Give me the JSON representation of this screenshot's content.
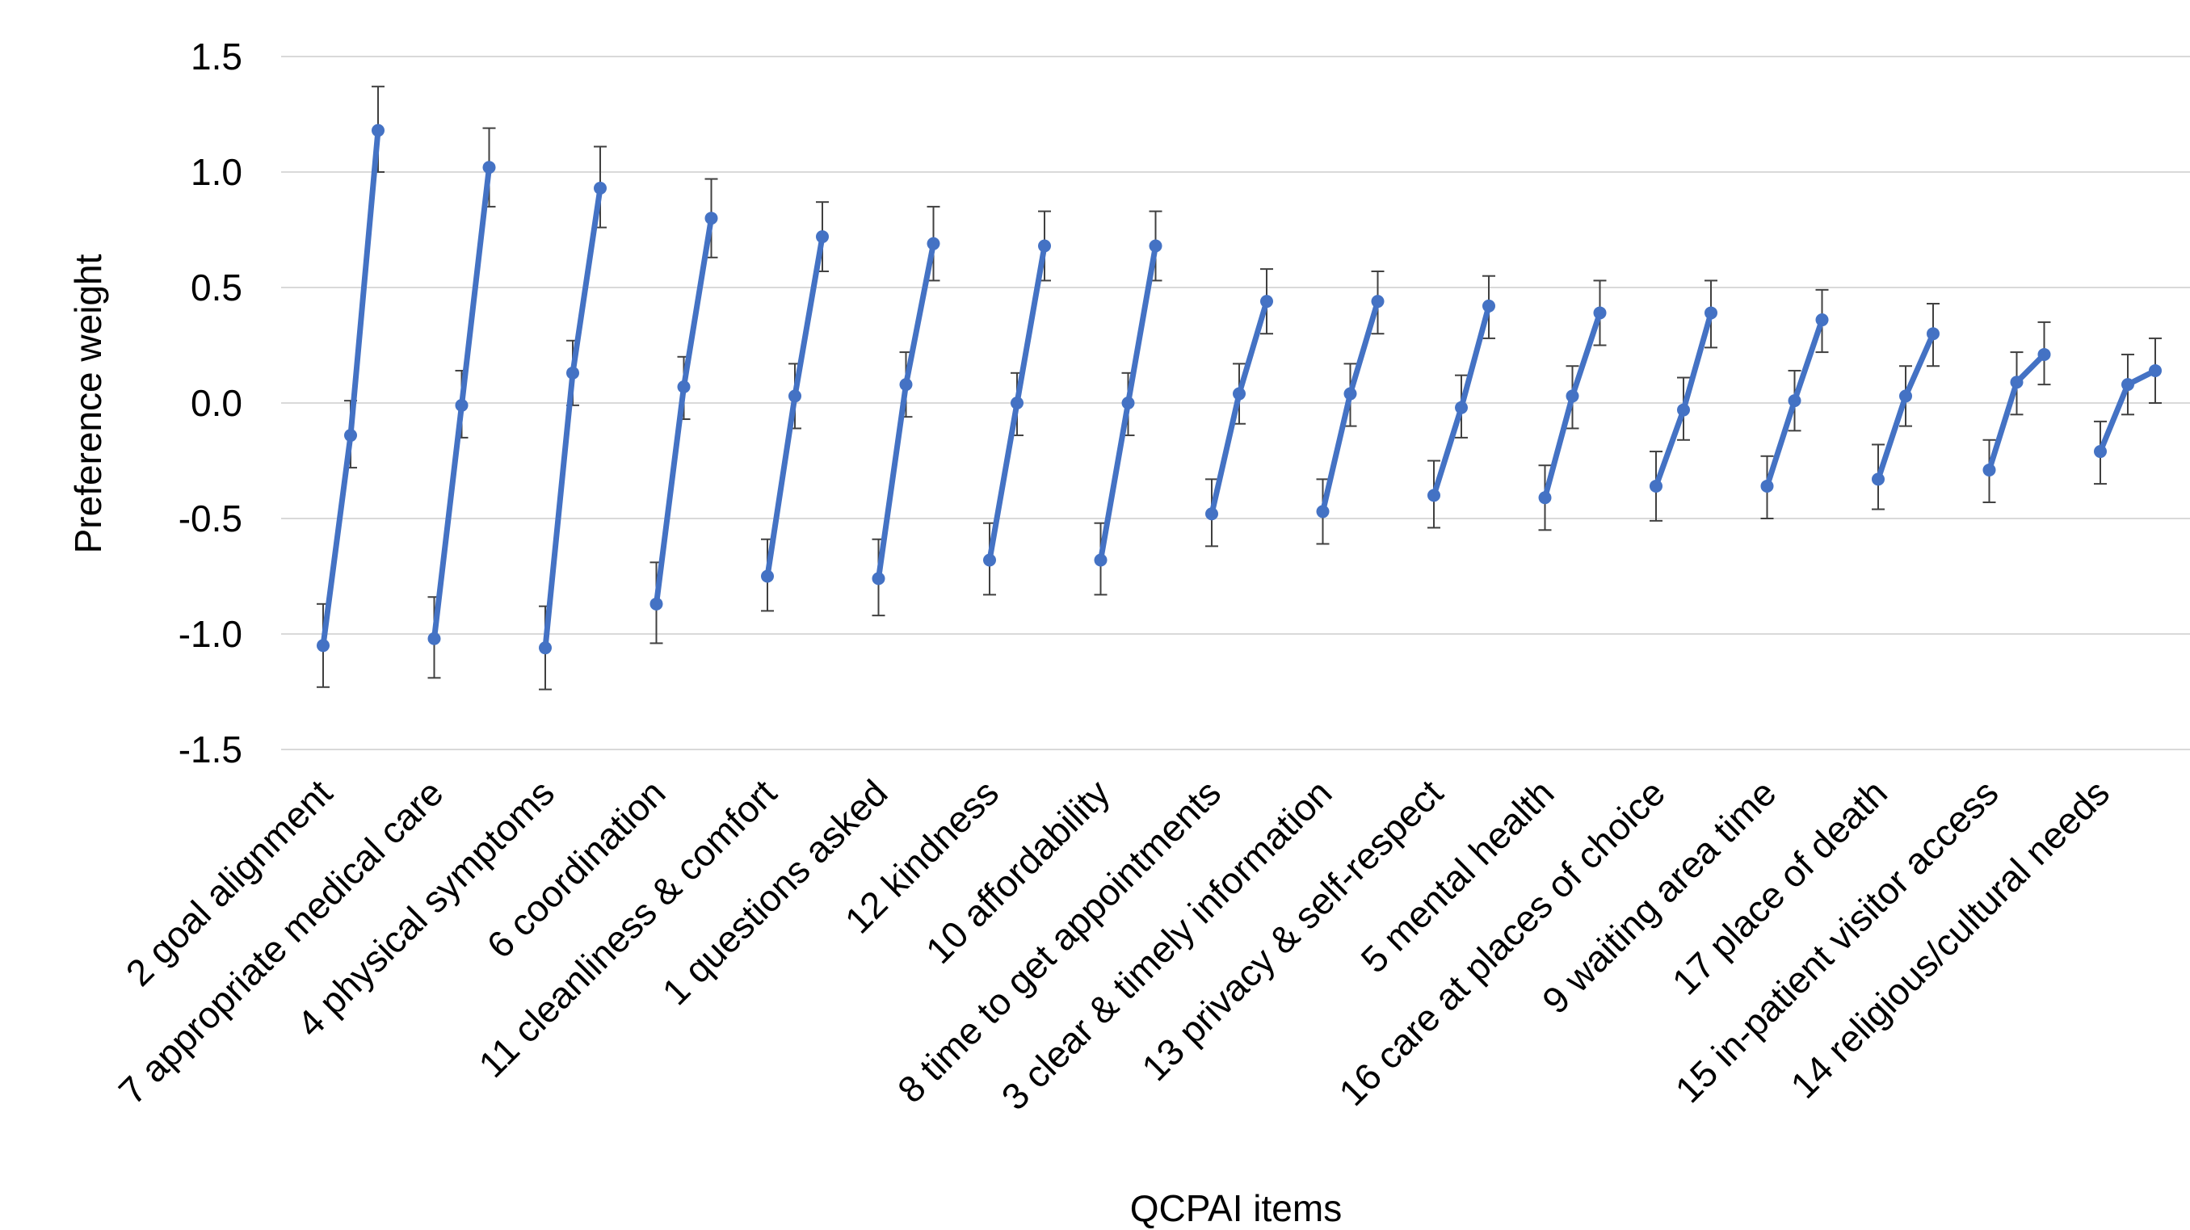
{
  "chart_data": {
    "type": "line",
    "title": "",
    "xlabel": "QCPAI items",
    "ylabel": "Preference weight",
    "ylim": [
      -1.5,
      1.5
    ],
    "yticks": [
      1.5,
      1.0,
      0.5,
      0.0,
      -0.5,
      -1.0,
      -1.5
    ],
    "ytick_labels": [
      "1.5",
      "1.0",
      "0.5",
      "0.0",
      "-0.5",
      "-1.0",
      "-1.5"
    ],
    "grid": true,
    "legend": "none",
    "color": "#4472C4",
    "categories": [
      "2 goal alignment",
      "7 appropriate medical care",
      "4 physical symptoms",
      "6 coordination",
      "11 cleanliness & comfort",
      "1 questions asked",
      "12 kindness",
      "10 affordability",
      "8 time to get appointments",
      "3 clear & timely information",
      "13 privacy & self-respect",
      "5 mental health",
      "16 care at places of choice",
      "9 waiting area time",
      "17 place of death",
      "15 in-patient visitor access",
      "14 religious/cultural needs"
    ],
    "groups": [
      {
        "values": [
          -1.05,
          -0.14,
          1.18
        ],
        "err_low": [
          -1.23,
          -0.28,
          1.0
        ],
        "err_high": [
          -0.87,
          0.01,
          1.37
        ]
      },
      {
        "values": [
          -1.02,
          -0.01,
          1.02
        ],
        "err_low": [
          -1.19,
          -0.15,
          0.85
        ],
        "err_high": [
          -0.84,
          0.14,
          1.19
        ]
      },
      {
        "values": [
          -1.06,
          0.13,
          0.93
        ],
        "err_low": [
          -1.24,
          -0.01,
          0.76
        ],
        "err_high": [
          -0.88,
          0.27,
          1.11
        ]
      },
      {
        "values": [
          -0.87,
          0.07,
          0.8
        ],
        "err_low": [
          -1.04,
          -0.07,
          0.63
        ],
        "err_high": [
          -0.69,
          0.2,
          0.97
        ]
      },
      {
        "values": [
          -0.75,
          0.03,
          0.72
        ],
        "err_low": [
          -0.9,
          -0.11,
          0.57
        ],
        "err_high": [
          -0.59,
          0.17,
          0.87
        ]
      },
      {
        "values": [
          -0.76,
          0.08,
          0.69
        ],
        "err_low": [
          -0.92,
          -0.06,
          0.53
        ],
        "err_high": [
          -0.59,
          0.22,
          0.85
        ]
      },
      {
        "values": [
          -0.68,
          0.0,
          0.68
        ],
        "err_low": [
          -0.83,
          -0.14,
          0.53
        ],
        "err_high": [
          -0.52,
          0.13,
          0.83
        ]
      },
      {
        "values": [
          -0.68,
          0.0,
          0.68
        ],
        "err_low": [
          -0.83,
          -0.14,
          0.53
        ],
        "err_high": [
          -0.52,
          0.13,
          0.83
        ]
      },
      {
        "values": [
          -0.48,
          0.04,
          0.44
        ],
        "err_low": [
          -0.62,
          -0.09,
          0.3
        ],
        "err_high": [
          -0.33,
          0.17,
          0.58
        ]
      },
      {
        "values": [
          -0.47,
          0.04,
          0.44
        ],
        "err_low": [
          -0.61,
          -0.1,
          0.3
        ],
        "err_high": [
          -0.33,
          0.17,
          0.57
        ]
      },
      {
        "values": [
          -0.4,
          -0.02,
          0.42
        ],
        "err_low": [
          -0.54,
          -0.15,
          0.28
        ],
        "err_high": [
          -0.25,
          0.12,
          0.55
        ]
      },
      {
        "values": [
          -0.41,
          0.03,
          0.39
        ],
        "err_low": [
          -0.55,
          -0.11,
          0.25
        ],
        "err_high": [
          -0.27,
          0.16,
          0.53
        ]
      },
      {
        "values": [
          -0.36,
          -0.03,
          0.39
        ],
        "err_low": [
          -0.51,
          -0.16,
          0.24
        ],
        "err_high": [
          -0.21,
          0.11,
          0.53
        ]
      },
      {
        "values": [
          -0.36,
          0.01,
          0.36
        ],
        "err_low": [
          -0.5,
          -0.12,
          0.22
        ],
        "err_high": [
          -0.23,
          0.14,
          0.49
        ]
      },
      {
        "values": [
          -0.33,
          0.03,
          0.3
        ],
        "err_low": [
          -0.46,
          -0.1,
          0.16
        ],
        "err_high": [
          -0.18,
          0.16,
          0.43
        ]
      },
      {
        "values": [
          -0.29,
          0.09,
          0.21
        ],
        "err_low": [
          -0.43,
          -0.05,
          0.08
        ],
        "err_high": [
          -0.16,
          0.22,
          0.35
        ]
      },
      {
        "values": [
          -0.21,
          0.08,
          0.14
        ],
        "err_low": [
          -0.35,
          -0.05,
          0.0
        ],
        "err_high": [
          -0.08,
          0.21,
          0.28
        ]
      }
    ]
  }
}
